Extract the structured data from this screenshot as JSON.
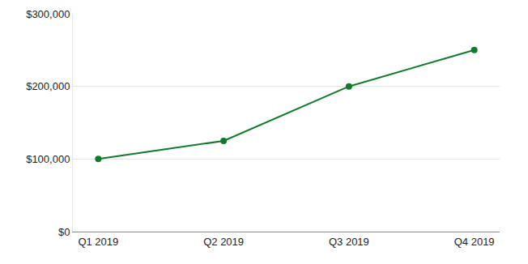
{
  "chart_data": {
    "type": "line",
    "categories": [
      "Q1 2019",
      "Q2 2019",
      "Q3 2019",
      "Q4 2019"
    ],
    "values": [
      100000,
      125000,
      200000,
      250000
    ],
    "color": "#0f7a2c",
    "marker": "circle",
    "ylim": [
      0,
      300000
    ],
    "yticks": [
      {
        "value": 0,
        "label": "$0"
      },
      {
        "value": 100000,
        "label": "$100,000"
      },
      {
        "value": 200000,
        "label": "$200,000"
      },
      {
        "value": 300000,
        "label": "$300,000"
      }
    ],
    "grid": true
  }
}
